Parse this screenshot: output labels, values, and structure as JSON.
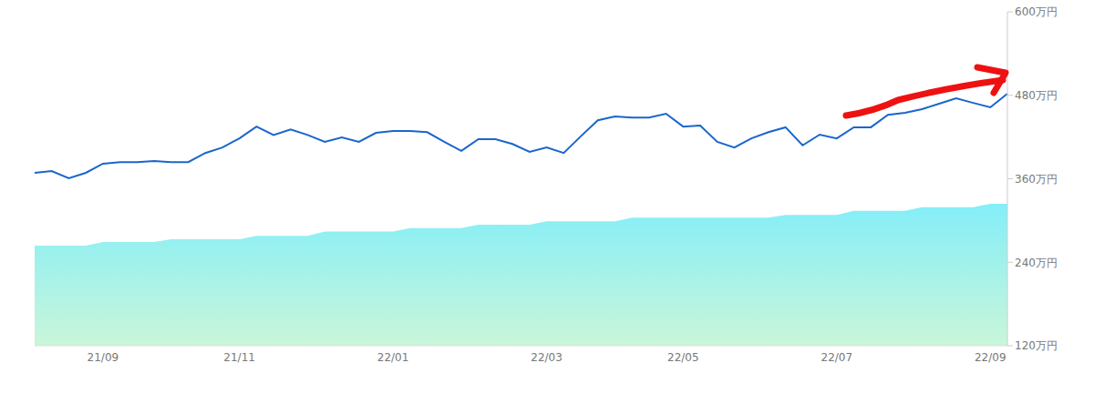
{
  "chart_data": {
    "type": "line",
    "categories": [
      null,
      null,
      null,
      null,
      "21/09",
      null,
      null,
      null,
      null,
      null,
      null,
      null,
      "21/11",
      null,
      null,
      null,
      null,
      null,
      null,
      null,
      null,
      "22/01",
      null,
      null,
      null,
      null,
      null,
      null,
      null,
      null,
      "22/03",
      null,
      null,
      null,
      null,
      null,
      null,
      null,
      "22/05",
      null,
      null,
      null,
      null,
      null,
      null,
      null,
      null,
      "22/07",
      null,
      null,
      null,
      null,
      null,
      null,
      null,
      null,
      "22/09",
      null
    ],
    "series": [
      {
        "type": "area",
        "color": "#84eef8",
        "values": [
          264,
          264,
          264,
          264,
          269,
          269,
          269,
          269,
          273,
          273,
          273,
          273,
          273,
          278,
          278,
          278,
          278,
          284,
          284,
          284,
          284,
          284,
          289,
          289,
          289,
          289,
          294,
          294,
          294,
          294,
          299,
          299,
          299,
          299,
          299,
          304,
          304,
          304,
          304,
          304,
          304,
          304,
          304,
          304,
          308,
          308,
          308,
          308,
          314,
          314,
          314,
          314,
          319,
          319,
          319,
          319,
          324,
          324
        ]
      },
      {
        "type": "line",
        "color": "#1a66cc",
        "values": [
          368.5,
          371,
          360.6,
          368.5,
          381.6,
          384,
          384,
          385.5,
          384,
          384,
          397,
          405,
          418,
          435,
          423,
          431,
          423,
          413,
          419.5,
          413,
          426,
          428.7,
          428.7,
          427,
          413,
          400,
          417,
          417,
          410,
          398.6,
          405,
          397,
          421,
          444,
          449.6,
          448,
          448,
          453.5,
          435,
          436.6,
          413,
          405,
          418,
          427,
          434,
          408,
          423.4,
          418,
          434,
          434,
          452,
          454.8,
          460,
          468,
          475.7,
          469,
          462.7,
          482.3
        ]
      }
    ],
    "ylim": [
      120,
      600
    ],
    "yticks": [
      {
        "value": 120,
        "label": "120万円"
      },
      {
        "value": 240,
        "label": "240万円"
      },
      {
        "value": 360,
        "label": "360万円"
      },
      {
        "value": 480,
        "label": "480万円"
      },
      {
        "value": 600,
        "label": "600万円"
      }
    ],
    "grid": false
  }
}
